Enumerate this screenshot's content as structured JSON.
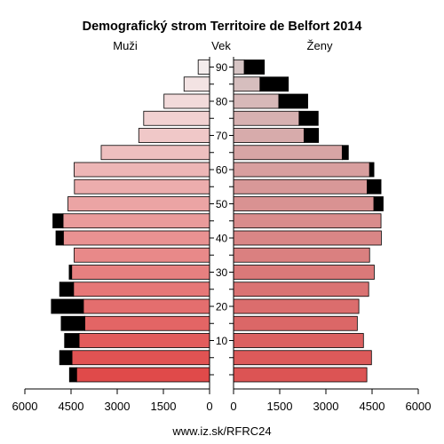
{
  "chart_data": {
    "type": "bar",
    "title": "Demografický strom Territoire de Belfort 2014",
    "left_label": "Muži",
    "center_label": "Vek",
    "right_label": "Ženy",
    "source": "www.iz.sk/RFRC24",
    "age_groups": [
      "0-4",
      "5-9",
      "10-14",
      "15-19",
      "20-24",
      "25-29",
      "30-34",
      "35-39",
      "40-44",
      "45-49",
      "50-54",
      "55-59",
      "60-64",
      "65-69",
      "70-74",
      "75-79",
      "80-84",
      "85-89",
      "90+"
    ],
    "age_tick_labels": [
      "10",
      "20",
      "30",
      "40",
      "50",
      "60",
      "70",
      "80",
      "90"
    ],
    "x_tick_labels": [
      "6000",
      "4500",
      "3000",
      "1500",
      "0",
      "1500",
      "3000",
      "4500",
      "6000"
    ],
    "xlim": [
      0,
      6000
    ],
    "series": [
      {
        "name": "Muži",
        "values": [
          4320,
          4470,
          4240,
          4050,
          4100,
          4420,
          4480,
          4400,
          4750,
          4760,
          4600,
          4390,
          4400,
          3520,
          2300,
          2140,
          1480,
          830,
          370
        ],
        "excess_values": [
          230,
          400,
          470,
          770,
          1040,
          450,
          80,
          0,
          240,
          330,
          0,
          0,
          0,
          0,
          0,
          0,
          0,
          0,
          0
        ]
      },
      {
        "name": "Ženy",
        "values": [
          4330,
          4480,
          4220,
          4020,
          4070,
          4390,
          4570,
          4420,
          4800,
          4790,
          4560,
          4340,
          4420,
          3530,
          2290,
          2130,
          1470,
          860,
          350
        ],
        "excess_values": [
          0,
          0,
          0,
          0,
          0,
          0,
          0,
          0,
          0,
          0,
          300,
          450,
          140,
          200,
          470,
          620,
          940,
          920,
          650
        ]
      }
    ]
  }
}
